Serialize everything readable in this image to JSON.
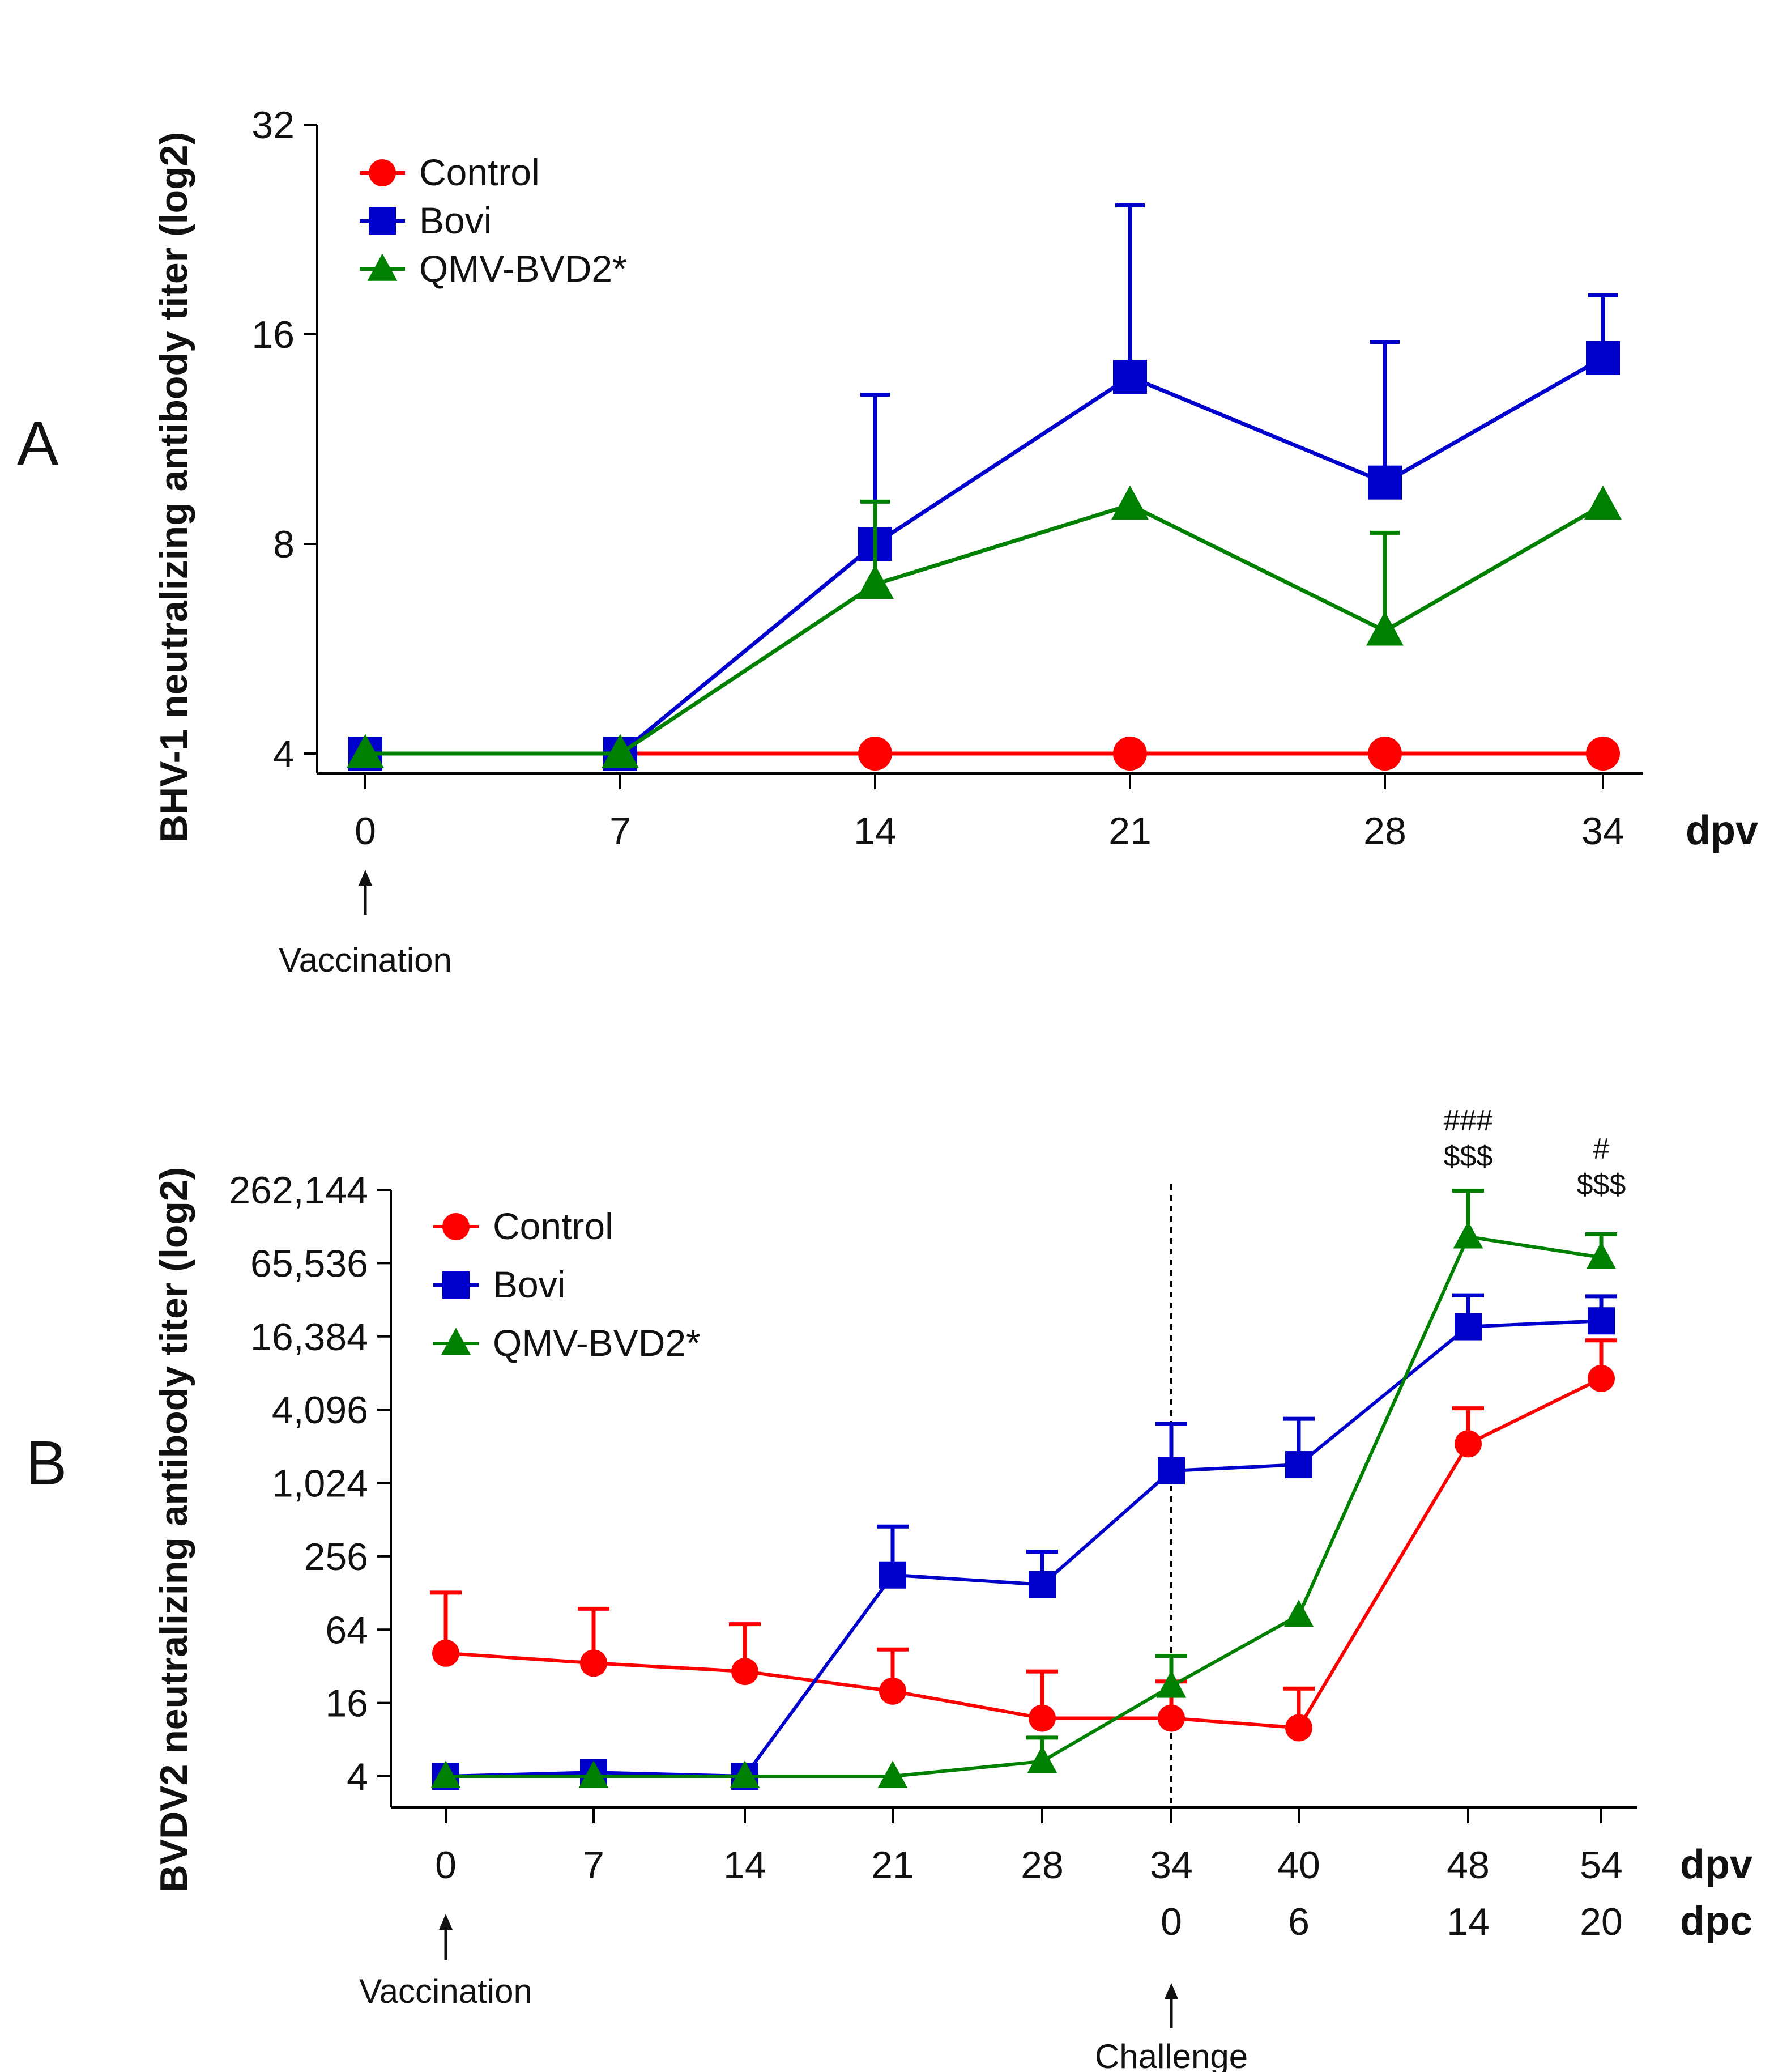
{
  "colors": {
    "Control": "#ff0000",
    "Bovi": "#0000cc",
    "QMV-BVD2*": "#008000",
    "axis": "#000000"
  },
  "chart_data": [
    {
      "type": "line",
      "panel_label": "A",
      "ylabel": "BHV-1 neutralizing antibody titer (log2)",
      "y_scale": "log2",
      "ylim": [
        4,
        32
      ],
      "yticks": [
        4,
        8,
        16,
        32
      ],
      "ytick_labels": [
        "4",
        "8",
        "16",
        "32"
      ],
      "x": [
        0,
        7,
        14,
        21,
        28,
        34
      ],
      "xtick_labels": [
        "0",
        "7",
        "14",
        "21",
        "28",
        "34"
      ],
      "x_unit_label": "dpv",
      "annotations": [
        {
          "text": "Vaccination",
          "x": 0
        }
      ],
      "legend": [
        "Control",
        "Bovi",
        "QMV-BVD2*"
      ],
      "series": [
        {
          "name": "Control",
          "marker": "circle",
          "values": [
            4,
            4,
            4,
            4,
            4,
            4
          ],
          "errors": [
            0,
            0,
            0,
            0,
            0,
            0
          ]
        },
        {
          "name": "Bovi",
          "marker": "square",
          "values": [
            4,
            4,
            8,
            13.9,
            9.8,
            14.8
          ],
          "errors": [
            0,
            0,
            5.1,
            10.6,
            5.8,
            3.4
          ]
        },
        {
          "name": "QMV-BVD2*",
          "marker": "triangle",
          "values": [
            4,
            4,
            7,
            9.1,
            6,
            9.1
          ],
          "errors": [
            0,
            0,
            2.2,
            0,
            2.3,
            0
          ]
        }
      ]
    },
    {
      "type": "line",
      "panel_label": "B",
      "ylabel": "BVDV2 neutralizing antibody titer (log2)",
      "y_scale": "log2",
      "ylim": [
        4,
        262144
      ],
      "yticks": [
        4,
        16,
        64,
        256,
        1024,
        4096,
        16384,
        65536,
        262144
      ],
      "ytick_labels": [
        "4",
        "16",
        "64",
        "256",
        "1,024",
        "4,096",
        "16,384",
        "65,536",
        "262,144"
      ],
      "x": [
        0,
        7,
        14,
        21,
        28,
        34,
        40,
        48,
        54
      ],
      "xtick_labels": [
        "0",
        "7",
        "14",
        "21",
        "28",
        "34",
        "40",
        "48",
        "54"
      ],
      "x_unit_label": "dpv",
      "x2_tick_labels": [
        {
          "x": 34,
          "label": "0"
        },
        {
          "x": 40,
          "label": "6"
        },
        {
          "x": 48,
          "label": "14"
        },
        {
          "x": 54,
          "label": "20"
        }
      ],
      "x2_unit_label": "dpc",
      "vline_x": 34,
      "annotations": [
        {
          "text": "Vaccination",
          "x": 0
        },
        {
          "text": "Challenge",
          "x": 34
        }
      ],
      "significance": [
        {
          "x": 48,
          "lines": [
            "###",
            "$$$"
          ]
        },
        {
          "x": 54,
          "lines": [
            "#",
            "$$$"
          ]
        }
      ],
      "legend": [
        "Control",
        "Bovi",
        "QMV-BVD2*"
      ],
      "series": [
        {
          "name": "Control",
          "marker": "circle",
          "values": [
            41,
            34,
            29,
            20,
            12,
            12,
            10,
            2150,
            7400
          ],
          "errors": [
            88,
            61,
            42,
            24,
            17,
            12,
            11,
            2060,
            7800
          ]
        },
        {
          "name": "Bovi",
          "marker": "square",
          "values": [
            4,
            4.3,
            4,
            180,
            150,
            1290,
            1450,
            19700,
            22000
          ],
          "errors": [
            0,
            0,
            0,
            270,
            130,
            1860,
            2000,
            16000,
            13000
          ]
        },
        {
          "name": "QMV-BVD2*",
          "marker": "triangle",
          "values": [
            4,
            4,
            4,
            4,
            5.3,
            22,
            84,
            108000,
            73000
          ],
          "errors": [
            0,
            0,
            0,
            0,
            3,
            17,
            0,
            150000,
            40000
          ]
        }
      ]
    }
  ]
}
